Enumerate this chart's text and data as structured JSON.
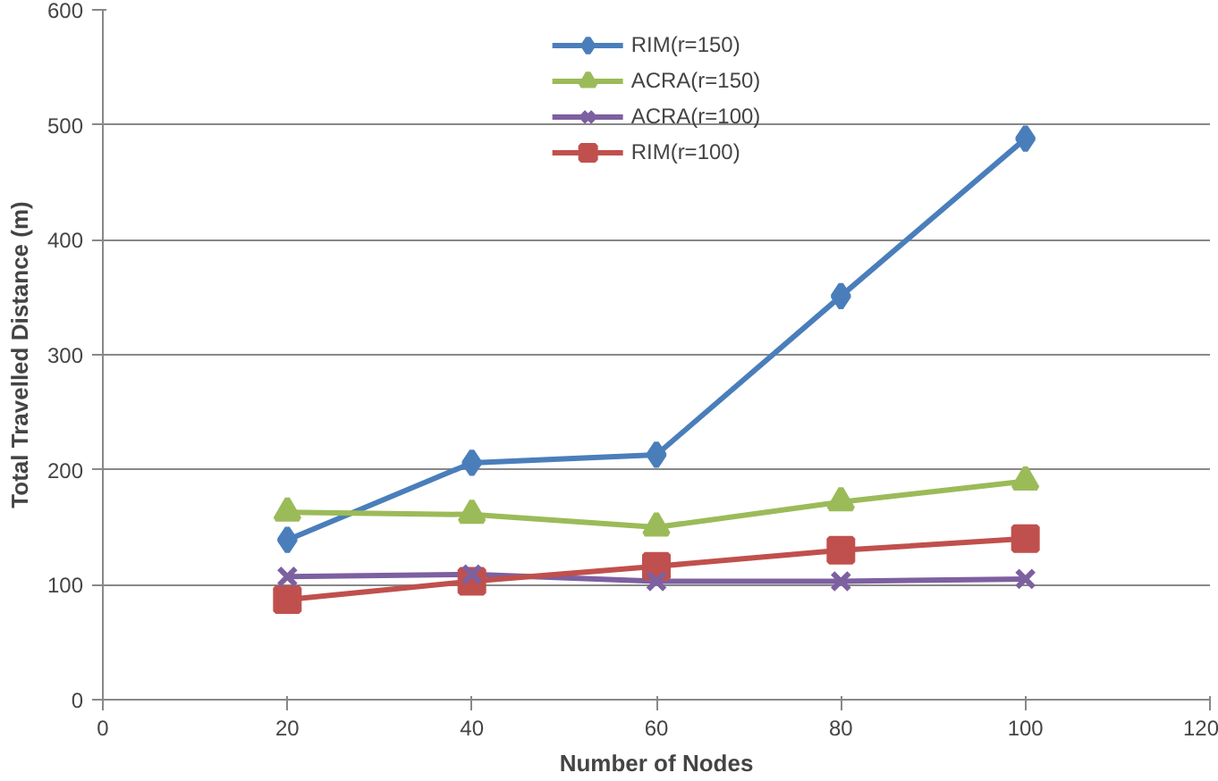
{
  "chart_data": {
    "type": "line",
    "xlabel": "Number of Nodes",
    "ylabel": "Total Travelled Distance (m)",
    "x": [
      20,
      40,
      60,
      80,
      100
    ],
    "series": [
      {
        "name": "RIM(r=150)",
        "color": "#4a7ebb",
        "marker": "diamond",
        "values": [
          139,
          206,
          213,
          351,
          488
        ]
      },
      {
        "name": "ACRA(r=150)",
        "color": "#9bbb59",
        "marker": "triangle",
        "values": [
          163,
          161,
          150,
          172,
          190
        ]
      },
      {
        "name": "ACRA(r=100)",
        "color": "#7d60a0",
        "marker": "x",
        "values": [
          107,
          109,
          103,
          103,
          105
        ]
      },
      {
        "name": "RIM(r=100)",
        "color": "#c0504d",
        "marker": "square",
        "values": [
          87,
          103,
          116,
          130,
          140
        ]
      }
    ],
    "xlim": [
      0,
      120
    ],
    "xticks": [
      0,
      20,
      40,
      60,
      80,
      100,
      120
    ],
    "ylim": [
      0,
      600
    ],
    "yticks": [
      0,
      100,
      200,
      300,
      400,
      500,
      600
    ],
    "grid": "y",
    "legend": "top",
    "line_style": "solid"
  }
}
